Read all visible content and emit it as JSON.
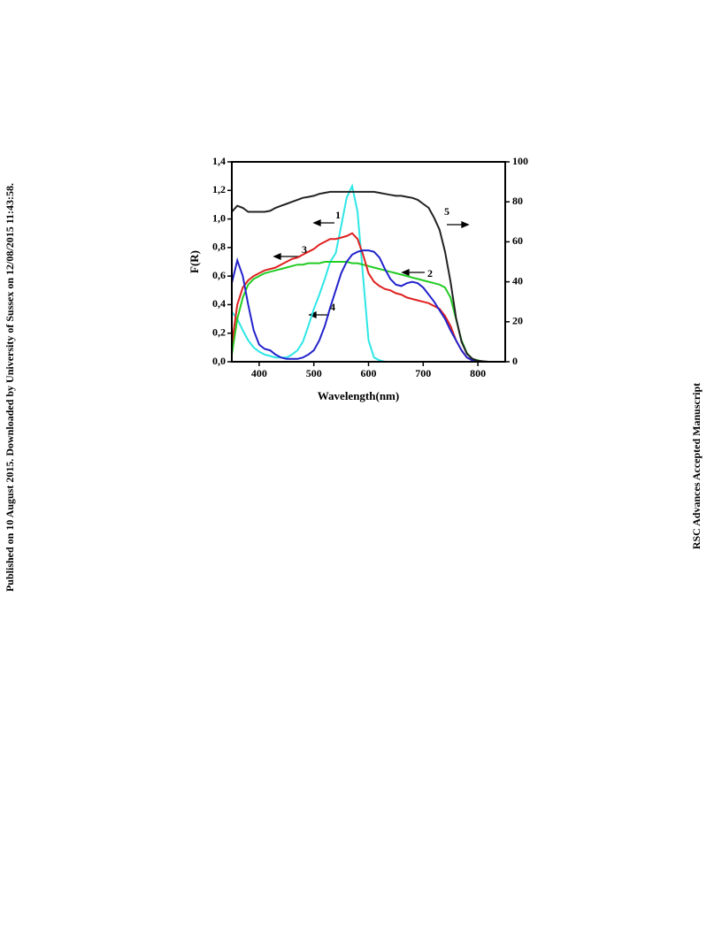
{
  "side_note": "Published on 10 August 2015. Downloaded by University of Sussex on 12/08/2015 11:43:58.",
  "watermark": "RSC Advances Accepted Manuscript",
  "chart_data": {
    "type": "line",
    "xlabel": "Wavelength(nm)",
    "ylabel": "F(R)",
    "xlim": [
      350,
      850
    ],
    "ylim": [
      0,
      1.4
    ],
    "y2lim": [
      0,
      100
    ],
    "xticks": [
      400,
      500,
      600,
      700,
      800
    ],
    "yticks": [
      {
        "value": 0,
        "label": "0,0"
      },
      {
        "value": 0.2,
        "label": "0,2"
      },
      {
        "value": 0.4,
        "label": "0,4"
      },
      {
        "value": 0.6,
        "label": "0,6"
      },
      {
        "value": 0.8,
        "label": "0,8"
      },
      {
        "value": 1.0,
        "label": "1,0"
      },
      {
        "value": 1.2,
        "label": "1,2"
      },
      {
        "value": 1.4,
        "label": "1,4"
      }
    ],
    "y2ticks": [
      0,
      20,
      40,
      60,
      80,
      100
    ],
    "x": [
      350,
      360,
      370,
      380,
      390,
      400,
      410,
      420,
      430,
      440,
      450,
      460,
      470,
      480,
      490,
      500,
      510,
      520,
      530,
      540,
      550,
      560,
      570,
      580,
      590,
      600,
      610,
      620,
      630,
      640,
      650,
      660,
      670,
      680,
      690,
      700,
      710,
      720,
      730,
      740,
      750,
      760,
      770,
      780,
      790,
      800,
      810,
      820,
      830,
      840,
      850
    ],
    "series": [
      {
        "name": "1",
        "color": "#2ee6e6",
        "values": [
          0.35,
          0.3,
          0.22,
          0.15,
          0.1,
          0.07,
          0.05,
          0.04,
          0.03,
          0.03,
          0.03,
          0.05,
          0.08,
          0.14,
          0.25,
          0.37,
          0.47,
          0.58,
          0.7,
          0.76,
          0.95,
          1.15,
          1.23,
          1.05,
          0.6,
          0.15,
          0.03,
          0.01,
          0,
          0,
          0,
          0,
          0,
          0,
          0,
          0,
          0,
          0,
          0,
          0,
          0,
          0,
          0,
          0,
          0,
          0,
          0,
          0,
          0,
          0,
          0
        ]
      },
      {
        "name": "2",
        "color": "#22cc22",
        "values": [
          0.05,
          0.3,
          0.45,
          0.54,
          0.58,
          0.6,
          0.62,
          0.63,
          0.64,
          0.65,
          0.66,
          0.67,
          0.68,
          0.68,
          0.69,
          0.69,
          0.69,
          0.7,
          0.7,
          0.7,
          0.7,
          0.7,
          0.69,
          0.69,
          0.68,
          0.67,
          0.66,
          0.65,
          0.64,
          0.63,
          0.62,
          0.61,
          0.6,
          0.59,
          0.58,
          0.57,
          0.56,
          0.55,
          0.54,
          0.52,
          0.45,
          0.3,
          0.15,
          0.06,
          0.02,
          0.01,
          0,
          0,
          0,
          0,
          0
        ]
      },
      {
        "name": "3",
        "color": "#e02020",
        "values": [
          0.12,
          0.4,
          0.52,
          0.57,
          0.6,
          0.62,
          0.64,
          0.65,
          0.66,
          0.68,
          0.7,
          0.72,
          0.73,
          0.75,
          0.77,
          0.79,
          0.82,
          0.84,
          0.86,
          0.86,
          0.87,
          0.88,
          0.9,
          0.86,
          0.75,
          0.62,
          0.56,
          0.53,
          0.51,
          0.5,
          0.48,
          0.47,
          0.45,
          0.44,
          0.43,
          0.42,
          0.41,
          0.39,
          0.37,
          0.32,
          0.25,
          0.15,
          0.08,
          0.03,
          0.01,
          0,
          0,
          0,
          0,
          0,
          0
        ]
      },
      {
        "name": "4",
        "color": "#2222cc",
        "values": [
          0.55,
          0.71,
          0.6,
          0.4,
          0.22,
          0.12,
          0.09,
          0.08,
          0.05,
          0.03,
          0.02,
          0.02,
          0.02,
          0.03,
          0.05,
          0.08,
          0.15,
          0.25,
          0.38,
          0.5,
          0.62,
          0.7,
          0.75,
          0.77,
          0.78,
          0.78,
          0.77,
          0.73,
          0.65,
          0.58,
          0.54,
          0.53,
          0.55,
          0.56,
          0.55,
          0.52,
          0.47,
          0.42,
          0.36,
          0.3,
          0.22,
          0.15,
          0.08,
          0.03,
          0.01,
          0,
          0,
          0,
          0,
          0,
          0
        ]
      },
      {
        "name": "5",
        "color": "#222222",
        "axis": "y2",
        "values": [
          75,
          78,
          77,
          75,
          75,
          75,
          75,
          75.5,
          77,
          78,
          79,
          80,
          81,
          82,
          82.5,
          83,
          84,
          84.5,
          85,
          85,
          85,
          85,
          85,
          85,
          85,
          85,
          85,
          84.5,
          84,
          83.5,
          83,
          83,
          82.5,
          82,
          81,
          79,
          77,
          72,
          66,
          55,
          40,
          22,
          10,
          4,
          1.5,
          0.5,
          0.2,
          0,
          0,
          0,
          0
        ]
      }
    ]
  }
}
